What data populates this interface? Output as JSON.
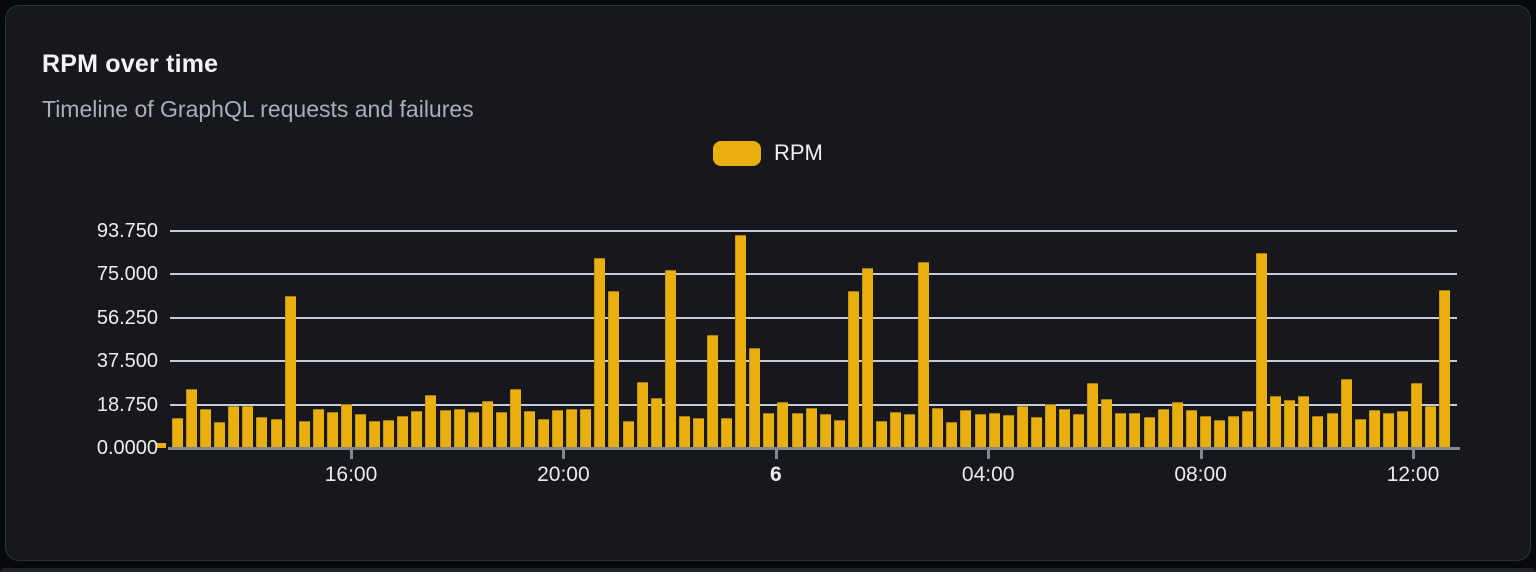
{
  "card": {
    "title": "RPM over time",
    "subtitle": "Timeline of GraphQL requests and failures"
  },
  "legend": {
    "label": "RPM",
    "color": "#e8af0e"
  },
  "colors": {
    "card_background": "#16181d",
    "card_border": "#2e323a",
    "bar": "#e8af0e",
    "gridline": "#dfe4ee",
    "axis": "#84888f",
    "title_text": "#f3f4f6",
    "subtitle_text": "#aab0b8",
    "tick_text": "#e9ebee"
  },
  "chart_data": {
    "type": "bar",
    "title": "RPM over time",
    "series_name": "RPM",
    "ylabel": "",
    "xlabel": "",
    "ylim": [
      0,
      93.75
    ],
    "grid": true,
    "legend_position": "top-center",
    "y_ticks": [
      {
        "label": "93.750",
        "value": 93.75
      },
      {
        "label": "75.000",
        "value": 75
      },
      {
        "label": "56.250",
        "value": 56.25
      },
      {
        "label": "37.500",
        "value": 37.5
      },
      {
        "label": "18.750",
        "value": 18.75
      },
      {
        "label": "0.0000",
        "value": 0
      }
    ],
    "x_ticks": [
      {
        "label": "16:00",
        "bold": false
      },
      {
        "label": "20:00",
        "bold": false
      },
      {
        "label": "6",
        "bold": true
      },
      {
        "label": "04:00",
        "bold": false
      },
      {
        "label": "08:00",
        "bold": false
      },
      {
        "label": "12:00",
        "bold": false
      }
    ],
    "values": [
      12.9,
      25.6,
      16.9,
      11.2,
      18,
      18,
      13.3,
      12.6,
      65.7,
      11.7,
      16.9,
      15.7,
      18.9,
      14.7,
      11.6,
      12.3,
      14,
      16.2,
      23,
      16.5,
      16.7,
      15.7,
      20.2,
      15.7,
      25.3,
      15.9,
      12.5,
      16.6,
      16.7,
      16.9,
      82.3,
      67.8,
      11.7,
      28.5,
      21.6,
      76.7,
      13.7,
      12.9,
      48.7,
      13,
      91.9,
      43.2,
      15,
      20,
      15,
      17.2,
      14.5,
      12.2,
      67.8,
      77.9,
      11.6,
      15.5,
      14.6,
      80.4,
      17.3,
      11.2,
      16.3,
      14.7,
      15.3,
      14.3,
      18,
      13.6,
      18.9,
      17,
      14.5,
      28.2,
      21,
      15.3,
      15,
      13.2,
      16.9,
      20,
      16.6,
      13.7,
      11.9,
      14,
      16.2,
      84.2,
      22.6,
      20.8,
      22.5,
      13.7,
      15.3,
      29.9,
      12.5,
      16.3,
      15.3,
      16.2,
      27.9,
      18,
      68.1
    ]
  }
}
